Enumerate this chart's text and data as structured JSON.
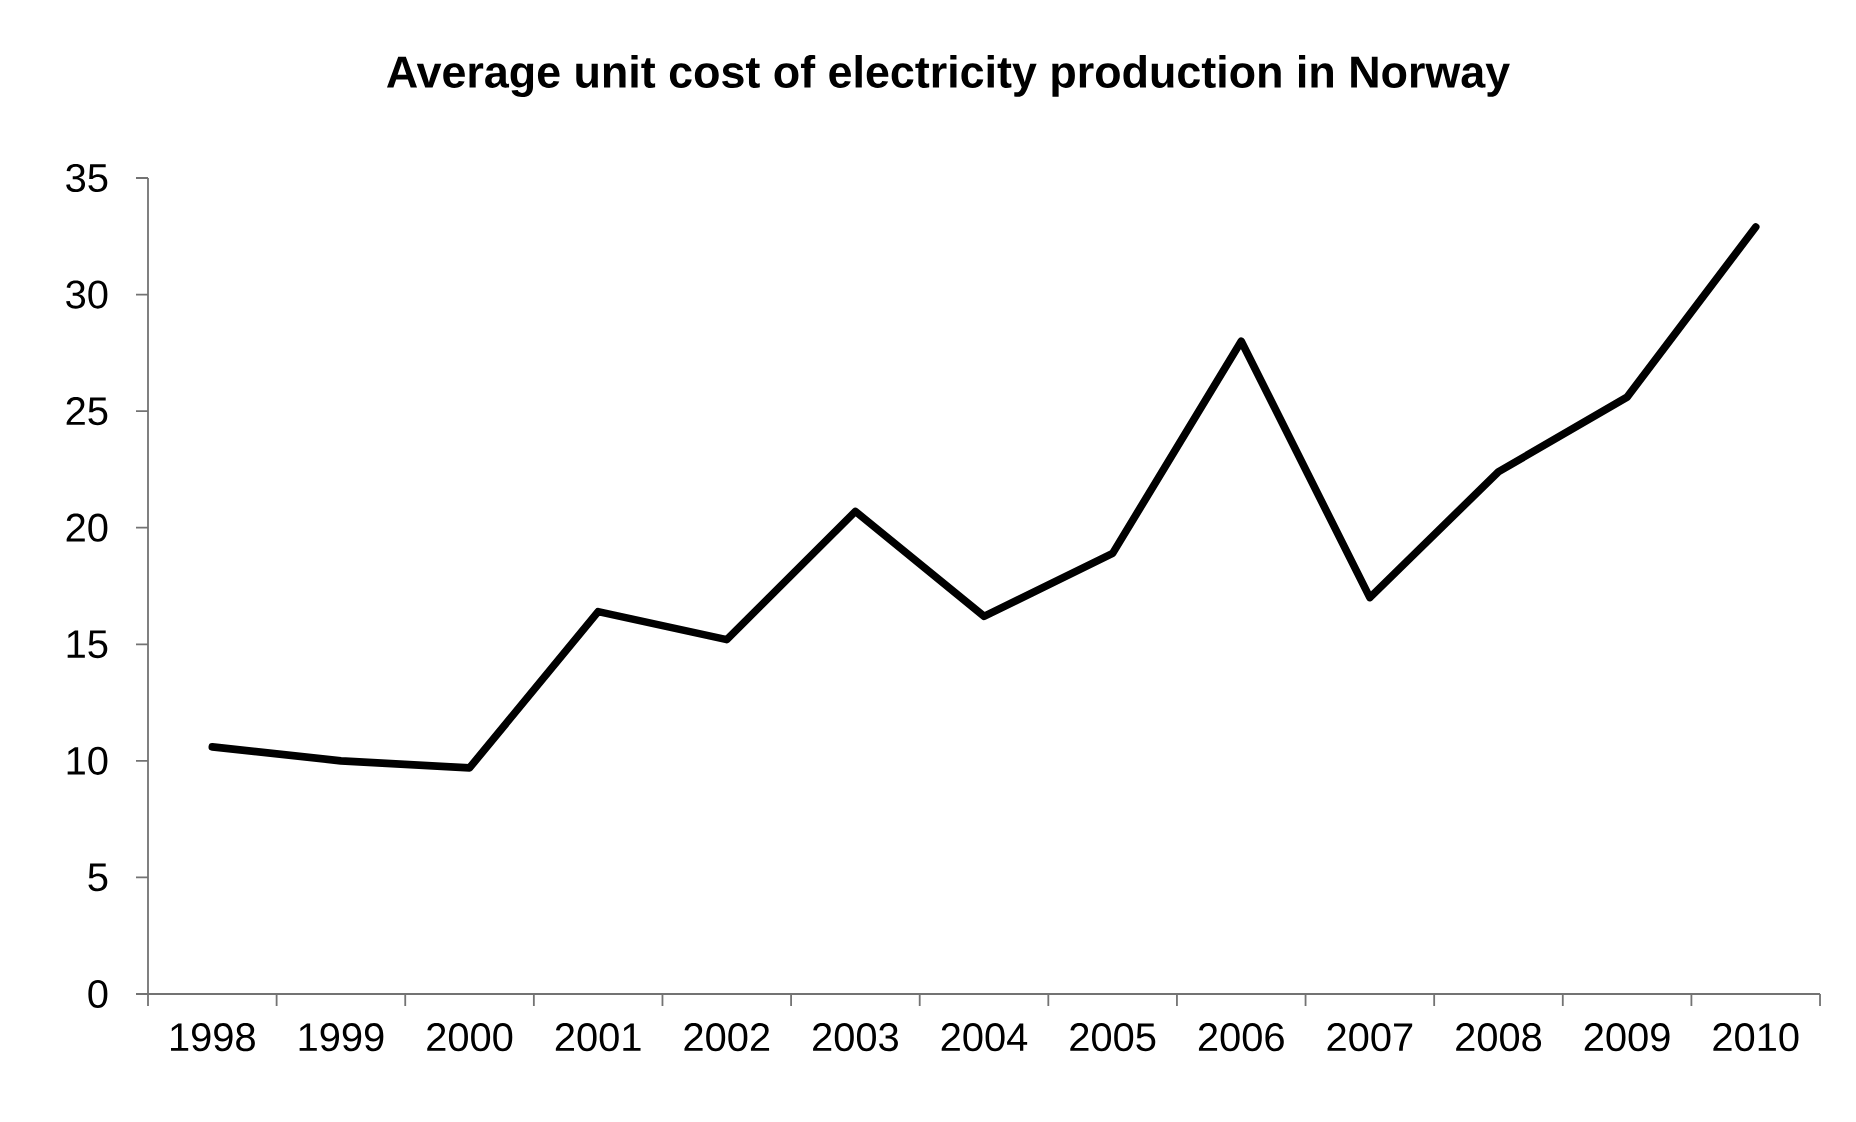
{
  "chart_data": {
    "type": "line",
    "title": "Average unit cost of electricity production in Norway",
    "categories": [
      "1998",
      "1999",
      "2000",
      "2001",
      "2002",
      "2003",
      "2004",
      "2005",
      "2006",
      "2007",
      "2008",
      "2009",
      "2010"
    ],
    "values": [
      10.6,
      10.0,
      9.7,
      16.4,
      15.2,
      20.7,
      16.2,
      18.9,
      28.0,
      17.0,
      22.4,
      25.6,
      32.9
    ],
    "color": "#000000",
    "line_style": "solid",
    "ylim": [
      0,
      35
    ],
    "yticks": [
      0,
      5,
      10,
      15,
      20,
      25,
      30,
      35
    ]
  }
}
